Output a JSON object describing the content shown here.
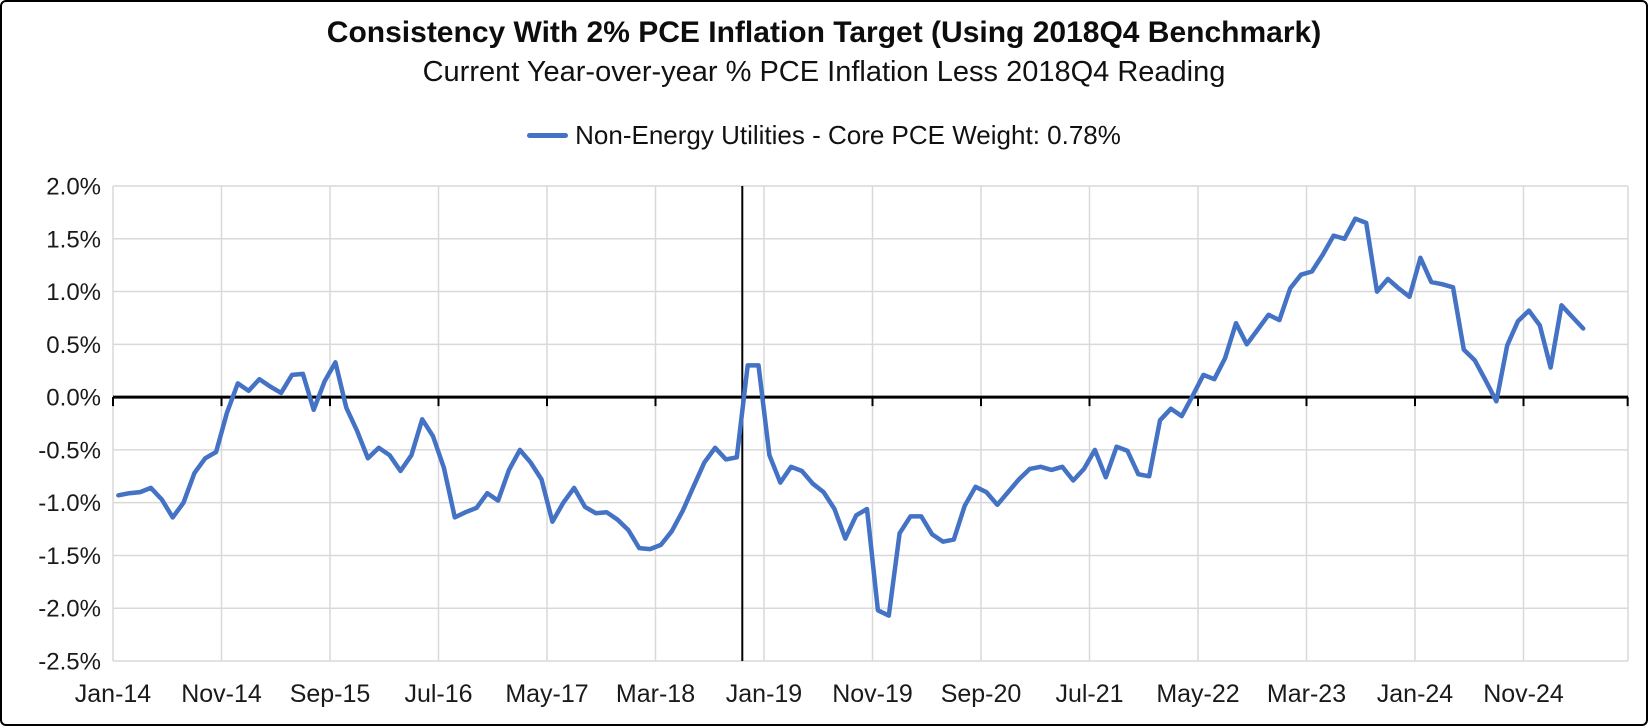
{
  "header": {
    "title": "Consistency With 2% PCE Inflation Target (Using 2018Q4 Benchmark)",
    "subtitle": "Current Year-over-year % PCE Inflation Less 2018Q4 Reading"
  },
  "legend": {
    "label": "Non-Energy Utilities - Core PCE Weight: 0.78%",
    "line_color": "#4472C4"
  },
  "chart_data": {
    "type": "line",
    "title": "Consistency With 2% PCE Inflation Target (Using 2018Q4 Benchmark)",
    "subtitle": "Current Year-over-year % PCE Inflation Less 2018Q4 Reading",
    "xlabel": "",
    "ylabel": "",
    "ylim": [
      -2.5,
      2.0
    ],
    "ytick_step": 0.5,
    "grid": true,
    "legend_position": "top-center",
    "y_tick_labels": [
      "2.0%",
      "1.5%",
      "1.0%",
      "0.5%",
      "0.0%",
      "-0.5%",
      "-1.0%",
      "-1.5%",
      "-2.0%",
      "-2.5%"
    ],
    "y_tick_values": [
      2.0,
      1.5,
      1.0,
      0.5,
      0.0,
      -0.5,
      -1.0,
      -1.5,
      -2.0,
      -2.5
    ],
    "x_tick_labels": [
      "Jan-14",
      "Nov-14",
      "Sep-15",
      "Jul-16",
      "May-17",
      "Mar-18",
      "Jan-19",
      "Nov-19",
      "Sep-20",
      "Jul-21",
      "May-22",
      "Mar-23",
      "Jan-24",
      "Nov-24"
    ],
    "x_tick_indices": [
      0,
      10,
      20,
      30,
      40,
      50,
      60,
      70,
      80,
      90,
      100,
      110,
      120,
      130
    ],
    "zero_line": true,
    "benchmark_line": {
      "month": "Nov-18",
      "month_index": 58
    },
    "x": [
      "Jan-14",
      "Feb-14",
      "Mar-14",
      "Apr-14",
      "May-14",
      "Jun-14",
      "Jul-14",
      "Aug-14",
      "Sep-14",
      "Oct-14",
      "Nov-14",
      "Dec-14",
      "Jan-15",
      "Feb-15",
      "Mar-15",
      "Apr-15",
      "May-15",
      "Jun-15",
      "Jul-15",
      "Aug-15",
      "Sep-15",
      "Oct-15",
      "Nov-15",
      "Dec-15",
      "Jan-16",
      "Feb-16",
      "Mar-16",
      "Apr-16",
      "May-16",
      "Jun-16",
      "Jul-16",
      "Aug-16",
      "Sep-16",
      "Oct-16",
      "Nov-16",
      "Dec-16",
      "Jan-17",
      "Feb-17",
      "Mar-17",
      "Apr-17",
      "May-17",
      "Jun-17",
      "Jul-17",
      "Aug-17",
      "Sep-17",
      "Oct-17",
      "Nov-17",
      "Dec-17",
      "Jan-18",
      "Feb-18",
      "Mar-18",
      "Apr-18",
      "May-18",
      "Jun-18",
      "Jul-18",
      "Aug-18",
      "Sep-18",
      "Oct-18",
      "Nov-18",
      "Dec-18",
      "Jan-19",
      "Feb-19",
      "Mar-19",
      "Apr-19",
      "May-19",
      "Jun-19",
      "Jul-19",
      "Aug-19",
      "Sep-19",
      "Oct-19",
      "Nov-19",
      "Dec-19",
      "Jan-20",
      "Feb-20",
      "Mar-20",
      "Apr-20",
      "May-20",
      "Jun-20",
      "Jul-20",
      "Aug-20",
      "Sep-20",
      "Oct-20",
      "Nov-20",
      "Dec-20",
      "Jan-21",
      "Feb-21",
      "Mar-21",
      "Apr-21",
      "May-21",
      "Jun-21",
      "Jul-21",
      "Aug-21",
      "Sep-21",
      "Oct-21",
      "Nov-21",
      "Dec-21",
      "Jan-22",
      "Feb-22",
      "Mar-22",
      "Apr-22",
      "May-22",
      "Jun-22",
      "Jul-22",
      "Aug-22",
      "Sep-22",
      "Oct-22",
      "Nov-22",
      "Dec-22",
      "Jan-23",
      "Feb-23",
      "Mar-23",
      "Apr-23",
      "May-23",
      "Jun-23",
      "Jul-23",
      "Aug-23",
      "Sep-23",
      "Oct-23",
      "Nov-23",
      "Dec-23",
      "Jan-24",
      "Feb-24",
      "Mar-24",
      "Apr-24",
      "May-24",
      "Jun-24",
      "Jul-24",
      "Aug-24",
      "Sep-24",
      "Oct-24",
      "Nov-24",
      "Dec-24",
      "Jan-25",
      "Feb-25",
      "Mar-25",
      "Apr-25"
    ],
    "series": [
      {
        "name": "Non-Energy Utilities - Core PCE Weight: 0.78%",
        "color": "#4472C4",
        "values": [
          -0.93,
          -0.91,
          -0.9,
          -0.86,
          -0.97,
          -1.14,
          -1.0,
          -0.72,
          -0.58,
          -0.52,
          -0.15,
          0.13,
          0.06,
          0.17,
          0.1,
          0.04,
          0.21,
          0.22,
          -0.12,
          0.15,
          0.33,
          -0.1,
          -0.32,
          -0.58,
          -0.48,
          -0.55,
          -0.7,
          -0.55,
          -0.21,
          -0.37,
          -0.67,
          -1.14,
          -1.09,
          -1.05,
          -0.91,
          -0.98,
          -0.69,
          -0.5,
          -0.62,
          -0.78,
          -1.18,
          -1.0,
          -0.86,
          -1.04,
          -1.1,
          -1.09,
          -1.16,
          -1.26,
          -1.43,
          -1.44,
          -1.4,
          -1.27,
          -1.08,
          -0.85,
          -0.62,
          -0.48,
          -0.59,
          -0.57,
          0.3,
          0.3,
          -0.55,
          -0.81,
          -0.66,
          -0.7,
          -0.82,
          -0.9,
          -1.06,
          -1.34,
          -1.12,
          -1.06,
          -2.02,
          -2.07,
          -1.29,
          -1.13,
          -1.13,
          -1.3,
          -1.37,
          -1.35,
          -1.03,
          -0.85,
          -0.9,
          -1.02,
          -0.9,
          -0.78,
          -0.68,
          -0.66,
          -0.69,
          -0.66,
          -0.79,
          -0.68,
          -0.5,
          -0.76,
          -0.47,
          -0.51,
          -0.73,
          -0.75,
          -0.22,
          -0.11,
          -0.18,
          0.01,
          0.21,
          0.17,
          0.37,
          0.7,
          0.5,
          0.64,
          0.78,
          0.73,
          1.03,
          1.16,
          1.19,
          1.35,
          1.53,
          1.5,
          1.69,
          1.65,
          1.0,
          1.12,
          1.03,
          0.95,
          1.32,
          1.09,
          1.07,
          1.04,
          0.45,
          0.35,
          0.16,
          -0.04,
          0.49,
          0.72,
          0.82,
          0.68,
          0.28,
          0.87,
          0.76,
          0.65
        ]
      }
    ],
    "colors": {
      "line": "#4472C4",
      "gridline": "#D9D9D9",
      "axis": "#000000"
    }
  }
}
